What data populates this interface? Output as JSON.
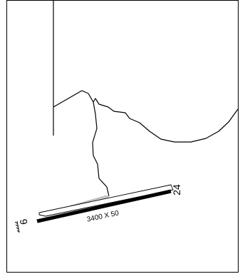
{
  "runway": {
    "dimensions_label": "3400 X 50",
    "end_low": "6",
    "end_high": "24"
  },
  "colors": {
    "background": "#ffffff",
    "line": "#000000",
    "taxiway_fill": "#c9c9c9"
  }
}
